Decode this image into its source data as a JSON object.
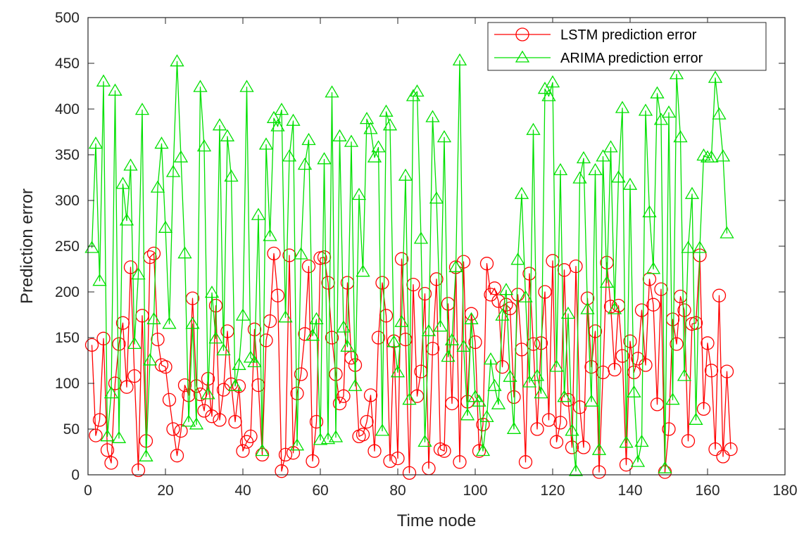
{
  "chart_data": {
    "type": "line",
    "title": "",
    "xlabel": "Time node",
    "ylabel": "Prediction error",
    "xlim": [
      0,
      180
    ],
    "ylim": [
      0,
      500
    ],
    "xticks": [
      0,
      20,
      40,
      60,
      80,
      100,
      120,
      140,
      160,
      180
    ],
    "yticks": [
      0,
      50,
      100,
      150,
      200,
      250,
      300,
      350,
      400,
      450,
      500
    ],
    "grid": false,
    "legend_position": "top-right",
    "series": [
      {
        "name": "LSTM prediction error",
        "color": "#ff0000",
        "marker": "circle",
        "values": [
          142,
          43,
          60,
          149,
          27,
          13,
          100,
          143,
          166,
          96,
          227,
          108,
          5,
          174,
          37,
          238,
          242,
          148,
          120,
          118,
          82,
          50,
          21,
          48,
          98,
          87,
          193,
          97,
          88,
          70,
          105,
          64,
          185,
          60,
          93,
          157,
          99,
          58,
          97,
          26,
          36,
          42,
          159,
          98,
          22,
          147,
          168,
          242,
          196,
          4,
          22,
          240,
          24,
          89,
          110,
          154,
          228,
          15,
          58,
          237,
          238,
          210,
          150,
          110,
          78,
          86,
          210,
          128,
          120,
          42,
          44,
          58,
          87,
          26,
          150,
          210,
          174,
          15,
          146,
          18,
          236,
          148,
          2,
          208,
          86,
          113,
          198,
          7,
          138,
          214,
          28,
          26,
          187,
          78,
          227,
          14,
          233,
          80,
          176,
          145,
          26,
          55,
          231,
          197,
          204,
          190,
          118,
          186,
          182,
          85,
          197,
          137,
          14,
          220,
          143,
          50,
          144,
          200,
          60,
          234,
          36,
          57,
          224,
          82,
          30,
          228,
          74,
          30,
          193,
          118,
          157,
          3,
          112,
          232,
          184,
          115,
          185,
          130,
          11,
          146,
          112,
          127,
          180,
          120,
          214,
          186,
          77,
          203,
          3,
          50,
          170,
          143,
          195,
          180,
          37,
          165,
          166,
          240,
          72,
          144,
          114,
          28,
          196,
          20,
          113,
          28
        ]
      },
      {
        "name": "ARIMA prediction error",
        "color": "#00e000",
        "marker": "triangle",
        "values": [
          248,
          362,
          212,
          430,
          42,
          89,
          420,
          40,
          318,
          278,
          338,
          143,
          219,
          399,
          20,
          125,
          170,
          314,
          362,
          270,
          165,
          331,
          452,
          347,
          242,
          58,
          165,
          55,
          424,
          359,
          88,
          199,
          149,
          382,
          136,
          370,
          326,
          97,
          120,
          174,
          424,
          128,
          123,
          284,
          26,
          361,
          261,
          390,
          381,
          399,
          172,
          348,
          387,
          32,
          241,
          339,
          366,
          152,
          170,
          38,
          345,
          39,
          418,
          41,
          370,
          161,
          140,
          364,
          97,
          306,
          222,
          389,
          378,
          347,
          358,
          48,
          397,
          382,
          145,
          112,
          167,
          327,
          82,
          414,
          419,
          258,
          36,
          157,
          391,
          302,
          162,
          369,
          129,
          147,
          227,
          453,
          140,
          65,
          170,
          85,
          80,
          26,
          63,
          126,
          97,
          77,
          174,
          202,
          107,
          50,
          235,
          307,
          194,
          101,
          377,
          108,
          89,
          422,
          414,
          429,
          118,
          333,
          85,
          176,
          48,
          4,
          324,
          346,
          181,
          80,
          333,
          27,
          348,
          210,
          358,
          181,
          325,
          401,
          35,
          317,
          90,
          14,
          36,
          398,
          287,
          225,
          417,
          388,
          7,
          396,
          82,
          438,
          369,
          108,
          248,
          307,
          60,
          248,
          349,
          347,
          347,
          434,
          394,
          348,
          264
        ]
      }
    ]
  }
}
